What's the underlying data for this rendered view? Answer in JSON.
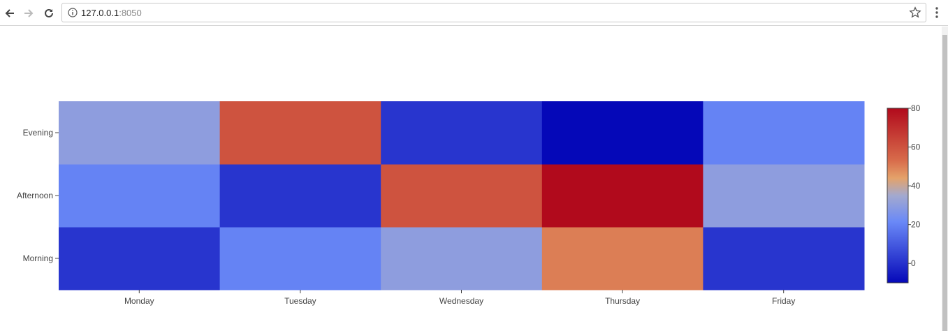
{
  "browser": {
    "url_host": "127.0.0.1",
    "url_port": ":8050"
  },
  "chart_data": {
    "type": "heatmap",
    "x": [
      "Monday",
      "Tuesday",
      "Wednesday",
      "Thursday",
      "Friday"
    ],
    "y": [
      "Morning",
      "Afternoon",
      "Evening"
    ],
    "z": [
      [
        1,
        20,
        30,
        50,
        1
      ],
      [
        20,
        1,
        60,
        80,
        30
      ],
      [
        30,
        60,
        1,
        -10,
        20
      ]
    ],
    "colorscale": [
      [
        0.0,
        "#0508b8"
      ],
      [
        0.35,
        "#6a89f7"
      ],
      [
        0.5,
        "#a3a9cf"
      ],
      [
        0.6,
        "#e4a26a"
      ],
      [
        0.7,
        "#d86c4b"
      ],
      [
        1.0,
        "#b10a1c"
      ]
    ],
    "zmin": -10,
    "zmax": 80,
    "colorbar_ticks": [
      0,
      20,
      40,
      60,
      80
    ],
    "title": "",
    "xlabel": "",
    "ylabel": ""
  }
}
